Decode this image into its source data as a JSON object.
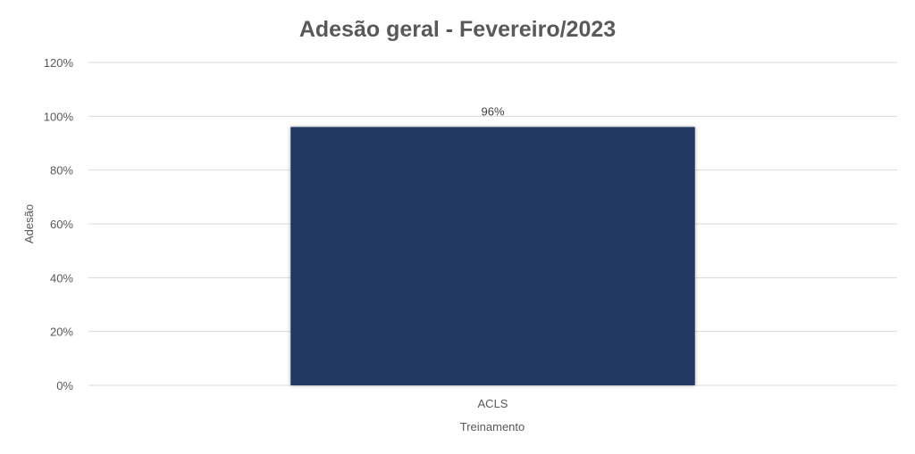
{
  "chart_data": {
    "type": "bar",
    "title": "Adesão geral - Fevereiro/2023",
    "xlabel": "Treinamento",
    "ylabel": "Adesão",
    "categories": [
      "ACLS"
    ],
    "values": [
      0.96
    ],
    "data_labels": [
      "96%"
    ],
    "ylim": [
      0,
      1.2
    ],
    "yticks": [
      0,
      0.2,
      0.4,
      0.6,
      0.8,
      1.0,
      1.2
    ],
    "ytick_labels": [
      "0%",
      "20%",
      "40%",
      "60%",
      "80%",
      "100%",
      "120%"
    ],
    "grid": true,
    "legend": "none",
    "bar_color": "#203864",
    "grid_color": "#d9d9d9",
    "text_color": "#595959"
  }
}
